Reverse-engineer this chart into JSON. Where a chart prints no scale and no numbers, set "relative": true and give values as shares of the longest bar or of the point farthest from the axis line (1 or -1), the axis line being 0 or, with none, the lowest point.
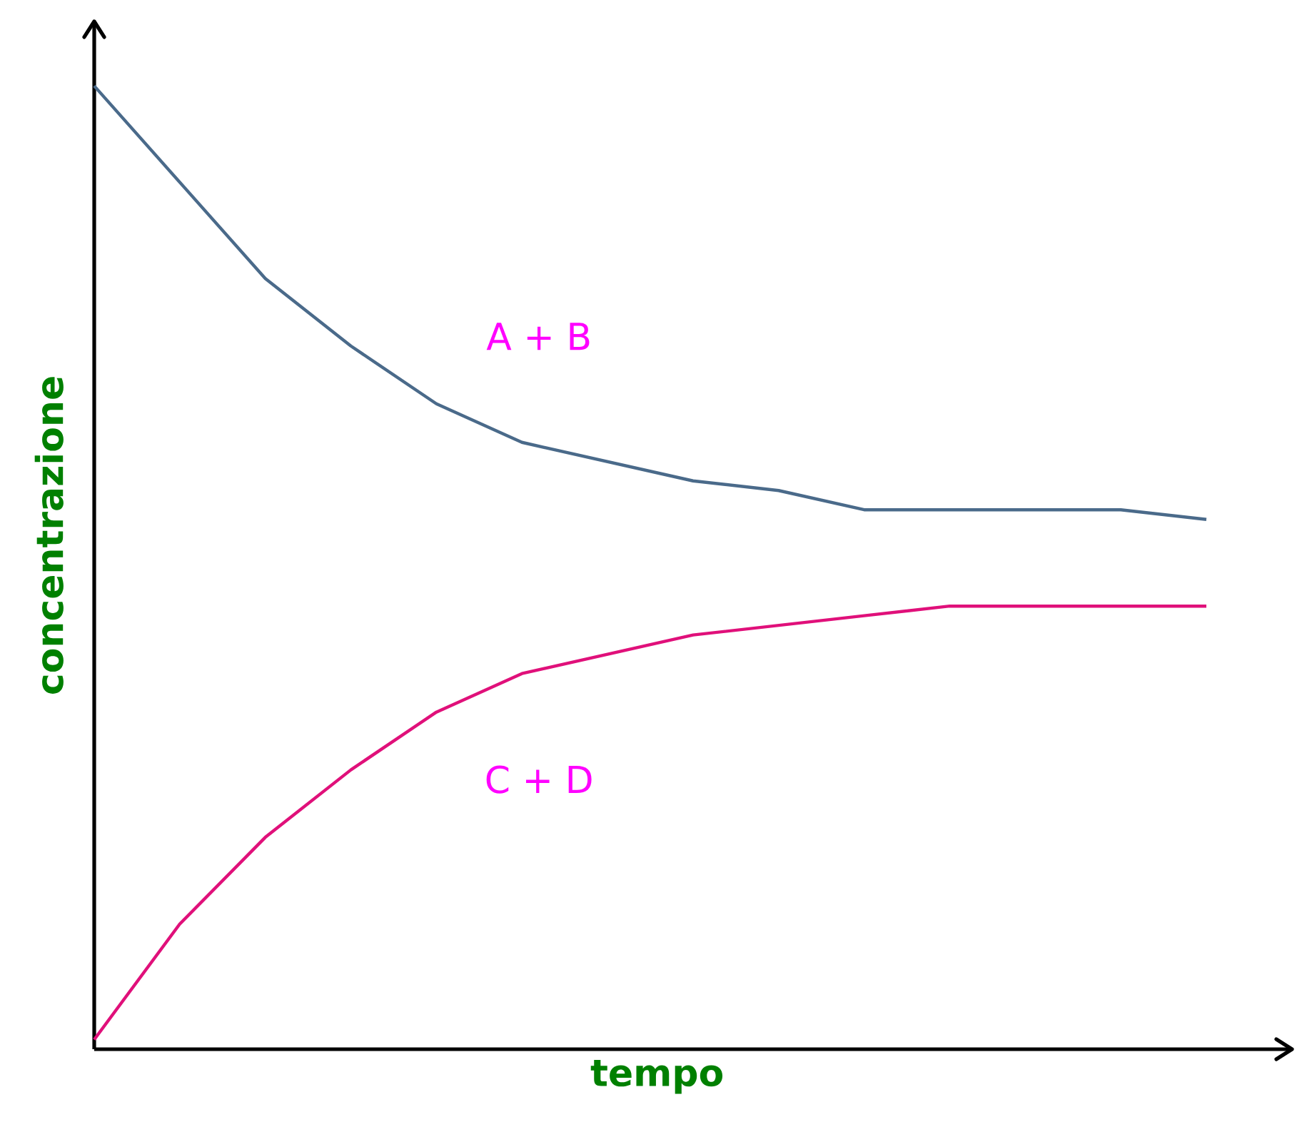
{
  "chart_data": {
    "type": "line",
    "relative": true,
    "xlabel": "tempo",
    "ylabel": "concentrazione",
    "categories": [
      null,
      null,
      null,
      null,
      null,
      null,
      null,
      null,
      null,
      null,
      null,
      null,
      null,
      null
    ],
    "series": [
      {
        "name": "A + B",
        "color": "#4a6a8a",
        "values": [
          1.0,
          0.9,
          0.8,
          0.73,
          0.67,
          0.63,
          0.61,
          0.59,
          0.58,
          0.56,
          0.56,
          0.56,
          0.56,
          0.55
        ]
      },
      {
        "name": "C + D",
        "color": "#e0107a",
        "values": [
          0.01,
          0.13,
          0.22,
          0.29,
          0.35,
          0.39,
          0.41,
          0.43,
          0.44,
          0.45,
          0.46,
          0.46,
          0.46,
          0.46
        ]
      }
    ],
    "marker": "none",
    "line_style": "solid"
  }
}
